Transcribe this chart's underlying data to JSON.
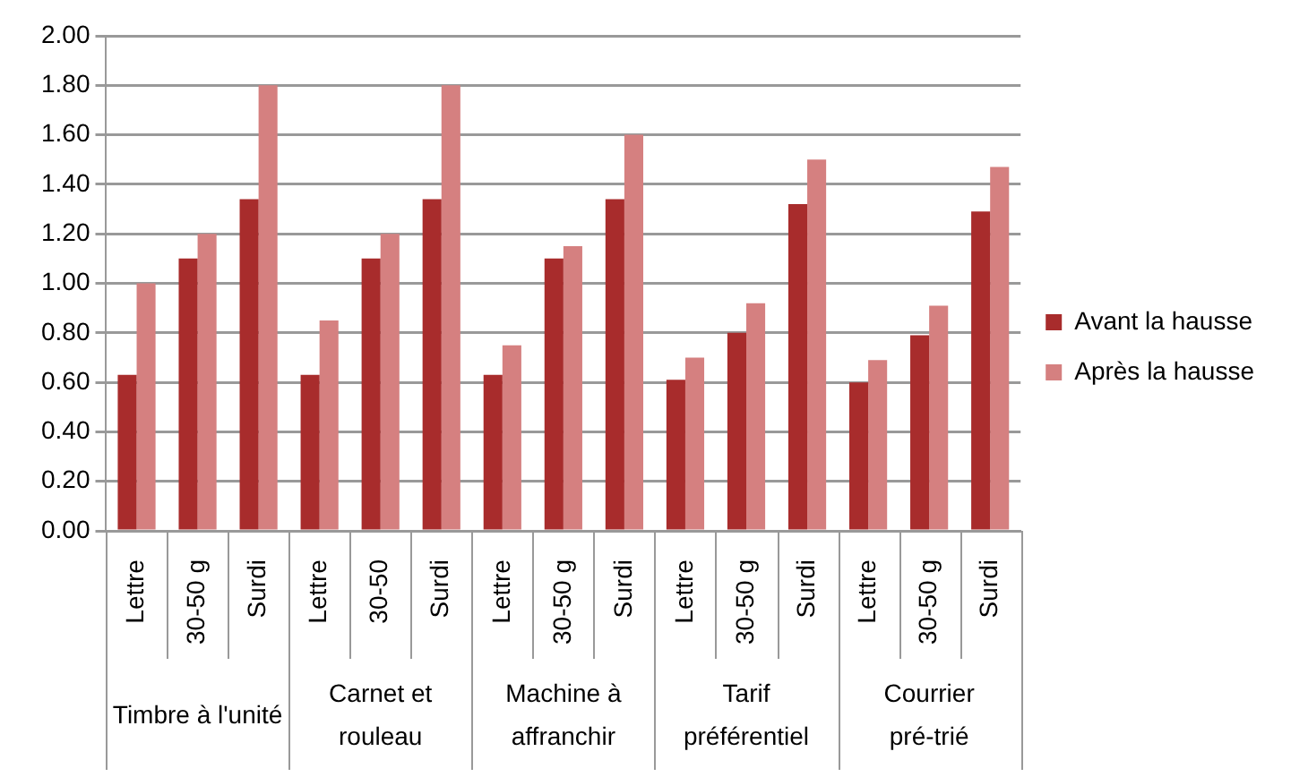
{
  "chart_data": {
    "type": "bar",
    "categories": [
      "Lettre",
      "30-50 g",
      "Surdi",
      "Lettre",
      "30-50",
      "Surdi",
      "Lettre",
      "30-50 g",
      "Surdi",
      "Lettre",
      "30-50 g",
      "Surdi",
      "Lettre",
      "30-50 g",
      "Surdi"
    ],
    "series": [
      {
        "name": "Avant la hausse",
        "color": "#a82c2c",
        "values": [
          0.63,
          1.1,
          1.34,
          0.63,
          1.1,
          1.34,
          0.63,
          1.1,
          1.34,
          0.61,
          0.8,
          1.32,
          0.6,
          0.79,
          1.29
        ]
      },
      {
        "name": "Après la hausse",
        "color": "#d58080",
        "values": [
          1.0,
          1.2,
          1.8,
          0.85,
          1.2,
          1.8,
          0.75,
          1.15,
          1.6,
          0.7,
          0.92,
          1.5,
          0.69,
          0.91,
          1.47
        ]
      }
    ],
    "annotations": [
      "Timbre à l'unité",
      "Carnet et rouleau",
      "Machine à affranchir",
      "Tarif préférentiel",
      "Courrier pré-trié"
    ],
    "ylim": [
      0,
      2
    ],
    "yticks": [
      {
        "value": 0,
        "label": "0.00"
      },
      {
        "value": 0.2,
        "label": "0.20"
      },
      {
        "value": 0.4,
        "label": "0.40"
      },
      {
        "value": 0.6,
        "label": "0.60"
      },
      {
        "value": 0.8,
        "label": "0.80"
      },
      {
        "value": 1,
        "label": "1.00"
      },
      {
        "value": 1.2,
        "label": "1.20"
      },
      {
        "value": 1.4,
        "label": "1.40"
      },
      {
        "value": 1.6,
        "label": "1.60"
      },
      {
        "value": 1.8,
        "label": "1.80"
      },
      {
        "value": 2,
        "label": "2.00"
      }
    ],
    "grid": "y",
    "legend": "right"
  }
}
